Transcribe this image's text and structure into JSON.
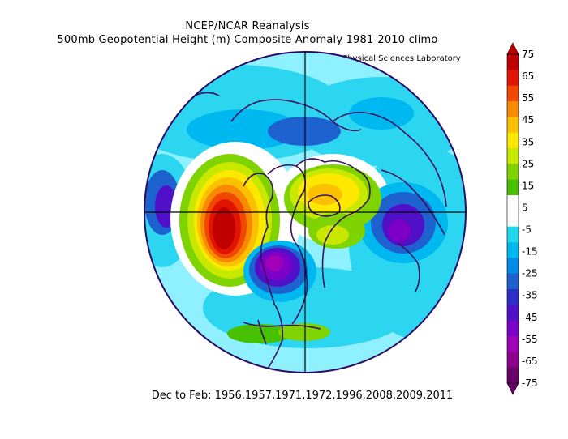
{
  "title_lines": [
    "NCEP/NCAR Reanalysis",
    "500mb Geopotential Height (m) Composite Anomaly 1981-2010 climo"
  ],
  "credit": "NOAA Physical Sciences Laboratory",
  "footer": "Dec to Feb: 1956,1957,1971,1972,1996,2008,2009,2011",
  "colorbar": {
    "labels": [
      "75",
      "65",
      "55",
      "45",
      "35",
      "25",
      "15",
      "5",
      "-5",
      "-15",
      "-25",
      "-35",
      "-45",
      "-55",
      "-65",
      "-75"
    ],
    "colors": [
      "#c00000",
      "#e21400",
      "#f04800",
      "#f78a00",
      "#fbc000",
      "#fde800",
      "#c8e800",
      "#7ed300",
      "#46c000",
      "#ffffff",
      "#ffffff",
      "#20d8f0",
      "#00b8f0",
      "#008ce8",
      "#1e62d0",
      "#2e2ec8",
      "#5010c8",
      "#7d00c8",
      "#a000b8",
      "#8c008c",
      "#6a006a"
    ]
  }
}
